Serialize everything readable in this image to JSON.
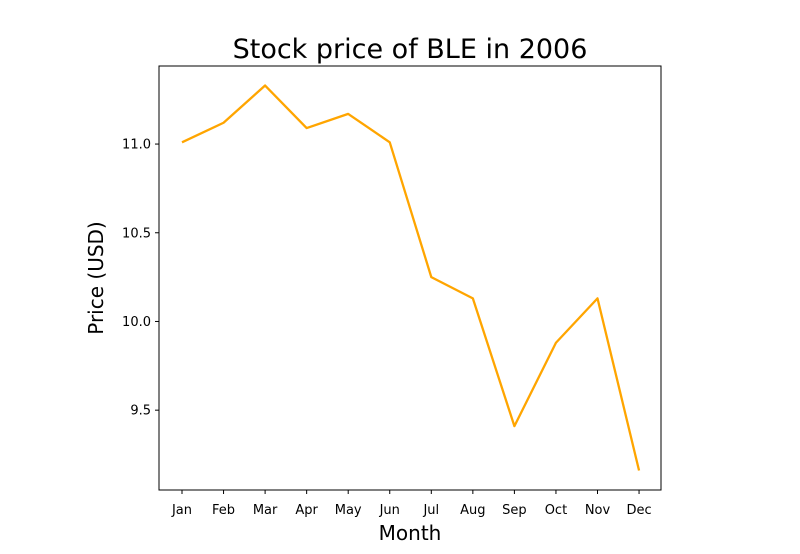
{
  "chart_data": {
    "type": "line",
    "title": "Stock price of BLE in 2006",
    "xlabel": "Month",
    "ylabel": "Price (USD)",
    "categories": [
      "Jan",
      "Feb",
      "Mar",
      "Apr",
      "May",
      "Jun",
      "Jul",
      "Aug",
      "Sep",
      "Oct",
      "Nov",
      "Dec"
    ],
    "series": [
      {
        "name": "BLE",
        "color": "#ffa500",
        "values": [
          11.01,
          11.12,
          11.33,
          11.09,
          11.17,
          11.01,
          10.25,
          10.13,
          9.41,
          9.88,
          10.13,
          9.16
        ]
      }
    ],
    "ylim": [
      9.05,
      11.44
    ],
    "yticks": [
      9.5,
      10.0,
      10.5,
      11.0
    ],
    "ytick_labels": [
      "9.5",
      "10.0",
      "10.5",
      "11.0"
    ],
    "grid": false
  }
}
